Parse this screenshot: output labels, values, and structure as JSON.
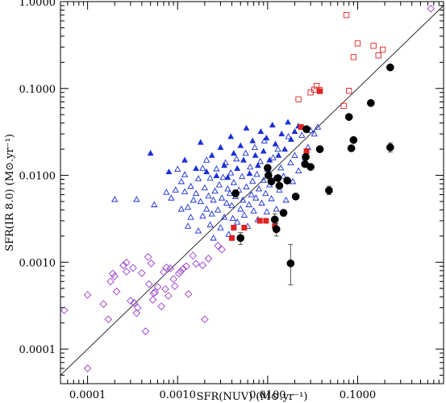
{
  "chart_data": {
    "type": "scatter",
    "title": "",
    "xlabel": "SFR(NUV) (M⊙.yr⁻¹)",
    "ylabel": "SFR(IR 8.0) (M⊙.yr⁻¹)",
    "xscale": "log",
    "yscale": "log",
    "xlim": [
      5e-05,
      0.9
    ],
    "ylim": [
      4e-05,
      1.0
    ],
    "xticks": [
      "0.0001",
      "0.0010",
      "0.0100",
      "0.1000"
    ],
    "yticks": [
      "0.0001",
      "0.0010",
      "0.0100",
      "0.1000",
      "1.0000"
    ],
    "grid": false,
    "reference_line": {
      "x": [
        5e-05,
        0.9
      ],
      "y": [
        5e-05,
        0.9
      ],
      "color": "#000000"
    },
    "series": [
      {
        "marker": "diamond-open",
        "color": "#9a3ec8",
        "points": [
          [
            5.5e-05,
            0.00028
          ],
          [
            0.0001,
            6e-05
          ],
          [
            0.0001,
            0.00042
          ],
          [
            0.00015,
            0.00033
          ],
          [
            0.00017,
            0.00022
          ],
          [
            0.00018,
            0.0006
          ],
          [
            0.00019,
            0.00074
          ],
          [
            0.0002,
            0.00069
          ],
          [
            0.00021,
            0.00046
          ],
          [
            0.00025,
            0.00092
          ],
          [
            0.00027,
            0.00078
          ],
          [
            0.00027,
            0.00099
          ],
          [
            0.0003,
            0.00036
          ],
          [
            0.00032,
            0.00086
          ],
          [
            0.00033,
            0.00034
          ],
          [
            0.00035,
            0.00026
          ],
          [
            0.00036,
            0.0003
          ],
          [
            0.0004,
            0.00075
          ],
          [
            0.00044,
            0.00016
          ],
          [
            0.00047,
            0.00115
          ],
          [
            0.00048,
            0.00056
          ],
          [
            0.00051,
            0.00097
          ],
          [
            0.00053,
            0.00037
          ],
          [
            0.00054,
            0.00044
          ],
          [
            0.00056,
            0.00045
          ],
          [
            0.0006,
            0.00052
          ],
          [
            0.00066,
            0.00031
          ],
          [
            0.0007,
            0.00077
          ],
          [
            0.00073,
            0.00049
          ],
          [
            0.00075,
            0.00087
          ],
          [
            0.00079,
            0.00041
          ],
          [
            0.00083,
            0.00085
          ],
          [
            0.0009,
            0.00064
          ],
          [
            0.00093,
            0.00053
          ],
          [
            0.00103,
            0.00074
          ],
          [
            0.00108,
            0.00078
          ],
          [
            0.00115,
            0.00084
          ],
          [
            0.00125,
            0.0009
          ],
          [
            0.00132,
            0.00043
          ],
          [
            0.00148,
            0.00119
          ],
          [
            0.0016,
            0.00096
          ],
          [
            0.0019,
            0.00092
          ],
          [
            0.002,
            0.00022
          ],
          [
            0.0022,
            0.0011
          ],
          [
            0.0028,
            0.00155
          ],
          [
            0.0031,
            0.0014
          ],
          [
            0.65,
            0.83
          ]
        ]
      },
      {
        "marker": "triangle-open",
        "color": "#1a2fd6",
        "points": [
          [
            0.0002,
            0.0053
          ],
          [
            0.00035,
            0.0053
          ],
          [
            0.00055,
            0.0046
          ],
          [
            0.00075,
            0.0064
          ],
          [
            0.00085,
            0.0055
          ],
          [
            0.00095,
            0.0068
          ],
          [
            0.001,
            0.0118
          ],
          [
            0.0011,
            0.0041
          ],
          [
            0.0011,
            0.0085
          ],
          [
            0.0012,
            0.0065
          ],
          [
            0.0012,
            0.0102
          ],
          [
            0.0013,
            0.0026
          ],
          [
            0.0013,
            0.0043
          ],
          [
            0.0014,
            0.0033
          ],
          [
            0.0014,
            0.0075
          ],
          [
            0.0015,
            0.0052
          ],
          [
            0.0016,
            0.0062
          ],
          [
            0.0017,
            0.0023
          ],
          [
            0.0017,
            0.0092
          ],
          [
            0.0018,
            0.005
          ],
          [
            0.0019,
            0.0034
          ],
          [
            0.0019,
            0.0121
          ],
          [
            0.002,
            0.0072
          ],
          [
            0.0021,
            0.0041
          ],
          [
            0.0021,
            0.015
          ],
          [
            0.0022,
            0.0058
          ],
          [
            0.0023,
            0.0027
          ],
          [
            0.0023,
            0.0093
          ],
          [
            0.0024,
            0.0036
          ],
          [
            0.0025,
            0.0019
          ],
          [
            0.0025,
            0.0052
          ],
          [
            0.0026,
            0.0066
          ],
          [
            0.0027,
            0.0119
          ],
          [
            0.0028,
            0.004
          ],
          [
            0.0029,
            0.0078
          ],
          [
            0.003,
            0.0025
          ],
          [
            0.0031,
            0.0055
          ],
          [
            0.0032,
            0.0095
          ],
          [
            0.0033,
            0.0033
          ],
          [
            0.0034,
            0.014
          ],
          [
            0.0035,
            0.0048
          ],
          [
            0.0036,
            0.007
          ],
          [
            0.0037,
            0.0021
          ],
          [
            0.0038,
            0.0062
          ],
          [
            0.0039,
            0.0107
          ],
          [
            0.004,
            0.0045
          ],
          [
            0.0041,
            0.0032
          ],
          [
            0.0042,
            0.0083
          ],
          [
            0.0044,
            0.0057
          ],
          [
            0.0045,
            0.0155
          ],
          [
            0.0046,
            0.0029
          ],
          [
            0.0048,
            0.0068
          ],
          [
            0.005,
            0.0041
          ],
          [
            0.0052,
            0.0097
          ],
          [
            0.0053,
            0.0052
          ],
          [
            0.0055,
            0.0035
          ],
          [
            0.0057,
            0.018
          ],
          [
            0.0058,
            0.0074
          ],
          [
            0.006,
            0.0026
          ],
          [
            0.0062,
            0.0046
          ],
          [
            0.0064,
            0.0125
          ],
          [
            0.0066,
            0.006
          ],
          [
            0.0068,
            0.0086
          ],
          [
            0.007,
            0.0039
          ],
          [
            0.0072,
            0.021
          ],
          [
            0.0074,
            0.0055
          ],
          [
            0.0076,
            0.0103
          ],
          [
            0.0078,
            0.0031
          ],
          [
            0.008,
            0.007
          ],
          [
            0.0083,
            0.0145
          ],
          [
            0.0086,
            0.0048
          ],
          [
            0.009,
            0.0088
          ],
          [
            0.0092,
            0.025
          ],
          [
            0.0095,
            0.0062
          ],
          [
            0.0098,
            0.0038
          ],
          [
            0.01,
            0.0118
          ],
          [
            0.0105,
            0.0078
          ],
          [
            0.011,
            0.0054
          ],
          [
            0.0115,
            0.016
          ],
          [
            0.012,
            0.0092
          ],
          [
            0.0125,
            0.0041
          ],
          [
            0.013,
            0.02
          ],
          [
            0.0135,
            0.0068
          ],
          [
            0.014,
            0.0122
          ],
          [
            0.015,
            0.0098
          ],
          [
            0.016,
            0.0052
          ],
          [
            0.017,
            0.028
          ],
          [
            0.018,
            0.014
          ],
          [
            0.019,
            0.0085
          ],
          [
            0.02,
            0.017
          ],
          [
            0.022,
            0.0113
          ],
          [
            0.024,
            0.029
          ],
          [
            0.026,
            0.016
          ],
          [
            0.028,
            0.021
          ],
          [
            0.03,
            0.033
          ],
          [
            0.033,
            0.03
          ],
          [
            0.036,
            0.036
          ]
        ]
      },
      {
        "marker": "triangle-filled",
        "color": "#1a2fd6",
        "points": [
          [
            0.0005,
            0.018
          ],
          [
            0.0008,
            0.011
          ],
          [
            0.0012,
            0.015
          ],
          [
            0.0016,
            0.012
          ],
          [
            0.0018,
            0.024
          ],
          [
            0.0021,
            0.011
          ],
          [
            0.0024,
            0.017
          ],
          [
            0.0027,
            0.0099
          ],
          [
            0.003,
            0.021
          ],
          [
            0.0033,
            0.013
          ],
          [
            0.0036,
            0.0095
          ],
          [
            0.0039,
            0.028
          ],
          [
            0.0042,
            0.018
          ],
          [
            0.0046,
            0.012
          ],
          [
            0.005,
            0.022
          ],
          [
            0.0054,
            0.015
          ],
          [
            0.0058,
            0.035
          ],
          [
            0.0063,
            0.0105
          ],
          [
            0.0068,
            0.025
          ],
          [
            0.0073,
            0.017
          ],
          [
            0.0078,
            0.013
          ],
          [
            0.0084,
            0.032
          ],
          [
            0.009,
            0.019
          ],
          [
            0.0097,
            0.027
          ],
          [
            0.0105,
            0.015
          ],
          [
            0.0113,
            0.038
          ],
          [
            0.0122,
            0.023
          ],
          [
            0.0132,
            0.017
          ],
          [
            0.0143,
            0.03
          ],
          [
            0.0155,
            0.02
          ],
          [
            0.0168,
            0.041
          ],
          [
            0.0182,
            0.026
          ],
          [
            0.02,
            0.032
          ],
          [
            0.022,
            0.037
          ]
        ]
      },
      {
        "marker": "square-open",
        "color": "#e02222",
        "points": [
          [
            0.022,
            0.075
          ],
          [
            0.027,
            0.034
          ],
          [
            0.03,
            0.09
          ],
          [
            0.033,
            0.097
          ],
          [
            0.035,
            0.107
          ],
          [
            0.038,
            0.096
          ],
          [
            0.07,
            0.063
          ],
          [
            0.075,
            0.7
          ],
          [
            0.08,
            0.094
          ],
          [
            0.09,
            0.23
          ],
          [
            0.1,
            0.33
          ],
          [
            0.15,
            0.31
          ],
          [
            0.17,
            0.24
          ],
          [
            0.19,
            0.28
          ]
        ]
      },
      {
        "marker": "square-filled",
        "color": "#e02222",
        "points": [
          [
            0.004,
            0.0019
          ],
          [
            0.0042,
            0.0025
          ],
          [
            0.0055,
            0.0025
          ],
          [
            0.0082,
            0.003
          ],
          [
            0.0096,
            0.003
          ],
          [
            0.012,
            0.0026
          ],
          [
            0.0235,
            0.036
          ],
          [
            0.027,
            0.019
          ],
          [
            0.038,
            0.093
          ]
        ]
      },
      {
        "marker": "circle-filled",
        "color": "#000000",
        "error_bars": true,
        "points": [
          {
            "x": 0.0044,
            "y": 0.0062,
            "lo": 0.0056,
            "hi": 0.0068
          },
          {
            "x": 0.005,
            "y": 0.0019,
            "lo": 0.0016,
            "hi": 0.0022
          },
          {
            "x": 0.01,
            "y": 0.0122,
            "lo": 0.0115,
            "hi": 0.013
          },
          {
            "x": 0.0102,
            "y": 0.01,
            "lo": 0.0094,
            "hi": 0.0106
          },
          {
            "x": 0.011,
            "y": 0.0085,
            "lo": 0.008,
            "hi": 0.009
          },
          {
            "x": 0.012,
            "y": 0.0031,
            "lo": 0.0026,
            "hi": 0.0036
          },
          {
            "x": 0.0125,
            "y": 0.0024,
            "lo": 0.002,
            "hi": 0.0028
          },
          {
            "x": 0.013,
            "y": 0.0093,
            "lo": 0.0088,
            "hi": 0.0098
          },
          {
            "x": 0.0135,
            "y": 0.0076,
            "lo": 0.0071,
            "hi": 0.0081
          },
          {
            "x": 0.015,
            "y": 0.0037,
            "lo": 0.0034,
            "hi": 0.004
          },
          {
            "x": 0.0165,
            "y": 0.0087,
            "lo": 0.0082,
            "hi": 0.0092
          },
          {
            "x": 0.018,
            "y": 0.00097,
            "lo": 0.00055,
            "hi": 0.0016
          },
          {
            "x": 0.0205,
            "y": 0.0057,
            "lo": 0.0053,
            "hi": 0.0061
          },
          {
            "x": 0.026,
            "y": 0.0135,
            "lo": 0.0126,
            "hi": 0.0144
          },
          {
            "x": 0.0265,
            "y": 0.0163,
            "lo": 0.0153,
            "hi": 0.0173
          },
          {
            "x": 0.027,
            "y": 0.034,
            "lo": 0.032,
            "hi": 0.036
          },
          {
            "x": 0.03,
            "y": 0.0125,
            "lo": 0.0118,
            "hi": 0.0132
          },
          {
            "x": 0.038,
            "y": 0.02,
            "lo": 0.0188,
            "hi": 0.0212
          },
          {
            "x": 0.048,
            "y": 0.0067,
            "lo": 0.006,
            "hi": 0.0075
          },
          {
            "x": 0.08,
            "y": 0.047,
            "lo": 0.0445,
            "hi": 0.0495
          },
          {
            "x": 0.085,
            "y": 0.0205,
            "lo": 0.0193,
            "hi": 0.0217
          },
          {
            "x": 0.09,
            "y": 0.0255,
            "lo": 0.024,
            "hi": 0.027
          },
          {
            "x": 0.14,
            "y": 0.068,
            "lo": 0.0645,
            "hi": 0.0715
          },
          {
            "x": 0.23,
            "y": 0.021,
            "lo": 0.0185,
            "hi": 0.0237
          },
          {
            "x": 0.23,
            "y": 0.175,
            "lo": 0.167,
            "hi": 0.183
          }
        ]
      }
    ]
  }
}
